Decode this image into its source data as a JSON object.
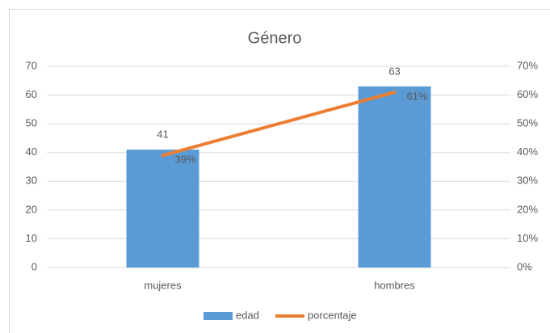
{
  "chart_data": {
    "type": "combo",
    "title": "Género",
    "categories": [
      "mujeres",
      "hombres"
    ],
    "series": [
      {
        "name": "edad",
        "type": "bar",
        "color": "#5b9bd5",
        "values": [
          41,
          63
        ]
      },
      {
        "name": "porcentaje",
        "type": "line",
        "color": "#ed7d31",
        "axis": "y2",
        "values": [
          39,
          61
        ],
        "value_labels": [
          "39%",
          "61%"
        ]
      }
    ],
    "ylim": [
      0,
      70
    ],
    "yticks": [
      0,
      10,
      20,
      30,
      40,
      50,
      60,
      70
    ],
    "y2lim": [
      0,
      70
    ],
    "y2ticks": [
      {
        "value": 0,
        "label": "0%"
      },
      {
        "value": 10,
        "label": "10%"
      },
      {
        "value": 20,
        "label": "20%"
      },
      {
        "value": 30,
        "label": "30%"
      },
      {
        "value": 40,
        "label": "40%"
      },
      {
        "value": 50,
        "label": "50%"
      },
      {
        "value": 60,
        "label": "60%"
      },
      {
        "value": 70,
        "label": "70%"
      }
    ],
    "grid": true,
    "legend": "bottom"
  }
}
